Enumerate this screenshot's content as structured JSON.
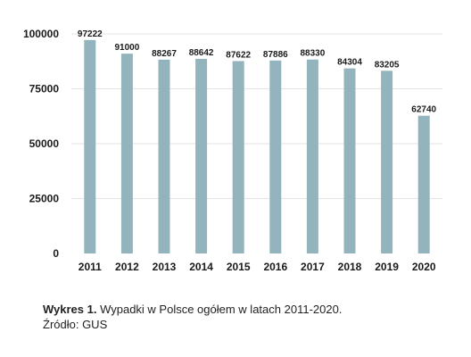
{
  "chart_data": {
    "type": "bar",
    "categories": [
      "2011",
      "2012",
      "2013",
      "2014",
      "2015",
      "2016",
      "2017",
      "2018",
      "2019",
      "2020"
    ],
    "values": [
      97222,
      91000,
      88267,
      88642,
      87622,
      87886,
      88330,
      84304,
      83205,
      62740
    ],
    "data_labels": [
      "97222",
      "91000",
      "88267",
      "88642",
      "87622",
      "87886",
      "88330",
      "84304",
      "83205",
      "62740"
    ],
    "yticks": [
      0,
      25000,
      50000,
      75000,
      100000
    ],
    "ytick_labels": [
      "0",
      "25000",
      "50000",
      "75000",
      "100000"
    ],
    "ylim": [
      0,
      100000
    ],
    "grid": true,
    "bar_color": "#93b4bc",
    "grid_color": "#e3e3e3"
  },
  "caption": {
    "label": "Wykres 1.",
    "text": " Wypadki w Polsce ogółem w latach 2011-2020.",
    "source": "Źródło: GUS"
  }
}
